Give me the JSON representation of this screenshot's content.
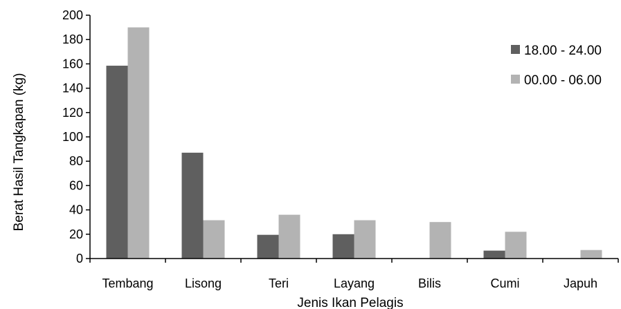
{
  "chart_data": {
    "type": "bar",
    "title": "",
    "xlabel": "Jenis Ikan Pelagis",
    "ylabel": "Berat Hasil Tangkapan (kg)",
    "ylim": [
      0,
      200
    ],
    "yticks": [
      0,
      20,
      40,
      60,
      80,
      100,
      120,
      140,
      160,
      180,
      200
    ],
    "categories": [
      "Tembang",
      "Lisong",
      "Teri",
      "Layang",
      "Bilis",
      "Cumi",
      "Japuh"
    ],
    "series": [
      {
        "name": "18.00 - 24.00",
        "color": "#5f5f5f",
        "values": [
          158.5,
          87,
          19.5,
          20,
          0,
          6.5,
          0
        ]
      },
      {
        "name": "00.00 - 06.00",
        "color": "#b3b3b3",
        "values": [
          190,
          31.5,
          36,
          31.5,
          30,
          22,
          7
        ]
      }
    ],
    "legend_position": "right",
    "grid": false
  }
}
